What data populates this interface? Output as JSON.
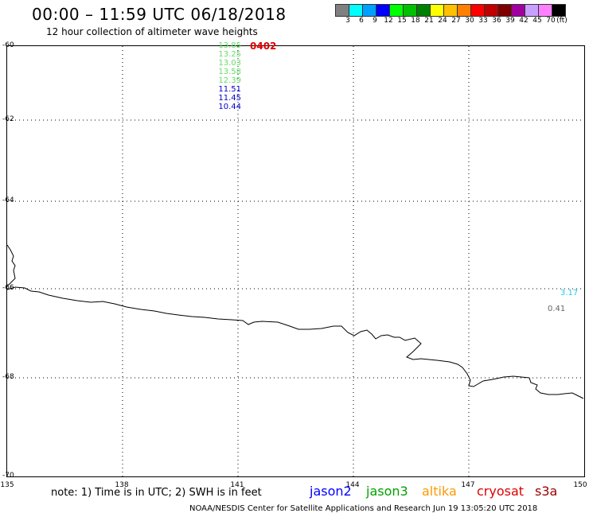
{
  "title": "00:00 – 11:59 UTC 06/18/2018",
  "subtitle": "12 hour collection of altimeter wave heights",
  "scale": {
    "unit": "(ft)",
    "labels": [
      "3",
      "6",
      "9",
      "12",
      "15",
      "18",
      "21",
      "24",
      "27",
      "30",
      "33",
      "36",
      "39",
      "42",
      "45",
      "70"
    ],
    "colors": [
      "#808080",
      "#00ffff",
      "#00a0ff",
      "#0000ff",
      "#00ff00",
      "#00c000",
      "#008000",
      "#ffff00",
      "#ffc000",
      "#ff8000",
      "#ff0000",
      "#c00000",
      "#800000",
      "#a000a0",
      "#c8a0ff",
      "#ff80ff",
      "#000000"
    ]
  },
  "axes": {
    "lat_labels": [
      "-60",
      "-62",
      "-64",
      "-66",
      "-68",
      "-70"
    ],
    "lon_labels": [
      "135",
      "138",
      "141",
      "144",
      "147",
      "150"
    ]
  },
  "track": {
    "id": "0402",
    "values": [
      {
        "text": "13.85",
        "color": "#66dd66"
      },
      {
        "text": "13.25",
        "color": "#66dd66"
      },
      {
        "text": "13.03",
        "color": "#66dd66"
      },
      {
        "text": "13.58",
        "color": "#66dd66"
      },
      {
        "text": "12.39",
        "color": "#66dd66"
      },
      {
        "text": "11.51",
        "color": "#0000cc"
      },
      {
        "text": "11.45",
        "color": "#0000cc"
      },
      {
        "text": "10.44",
        "color": "#0000cc"
      }
    ]
  },
  "east_obs": [
    {
      "text": "3.17",
      "color": "#22ccee"
    },
    {
      "text": "0.41",
      "color": "#666666"
    }
  ],
  "note": "note: 1) Time is in UTC; 2) SWH is in feet",
  "satellites": [
    {
      "name": "jason2",
      "color": "#0000ff"
    },
    {
      "name": "jason3",
      "color": "#00a000"
    },
    {
      "name": "altika",
      "color": "#ff9900"
    },
    {
      "name": "cryosat",
      "color": "#dd0000"
    },
    {
      "name": "s3a",
      "color": "#990000"
    }
  ],
  "credit": "NOAA/NESDIS Center for Satellite Applications and Research   Jun 19 13:05:20 UTC 2018"
}
